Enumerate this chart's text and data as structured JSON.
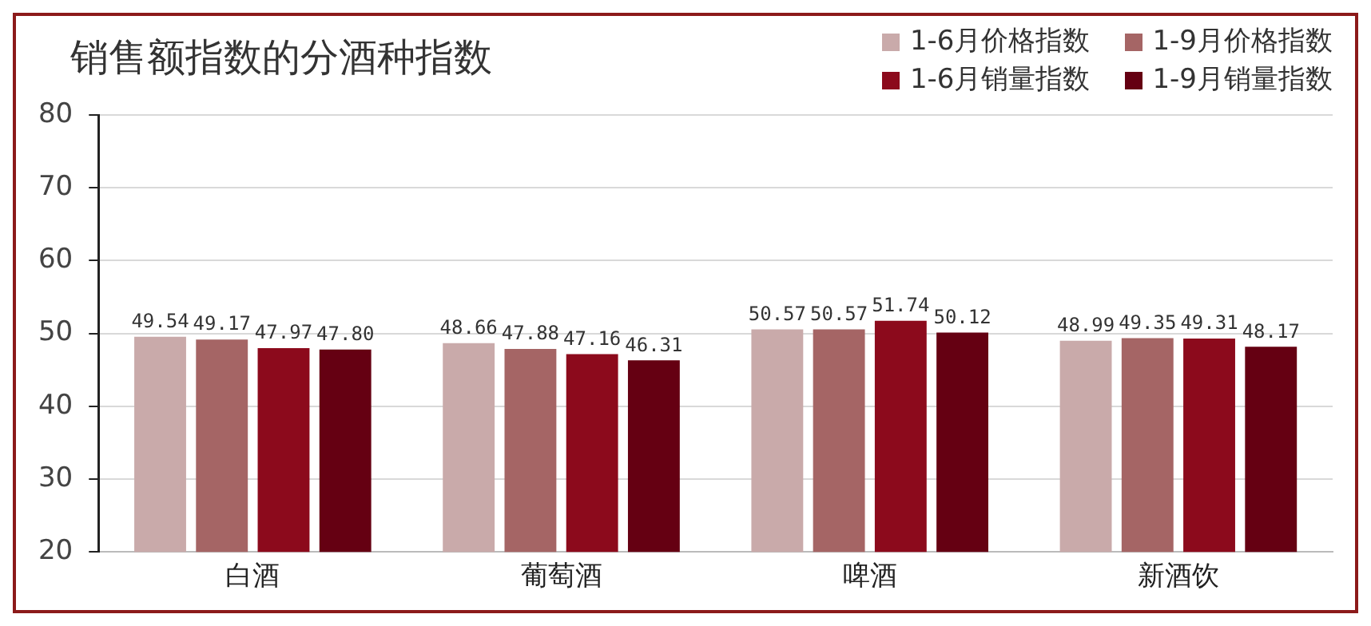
{
  "chart_data": {
    "type": "bar",
    "title": "销售额指数的分酒种指数",
    "categories": [
      "白酒",
      "葡萄酒",
      "啤酒",
      "新酒饮"
    ],
    "series": [
      {
        "name": "1-6月价格指数",
        "color": "#c9aaaa",
        "values": [
          49.54,
          48.66,
          50.57,
          48.99
        ],
        "value_labels": [
          "49.54",
          "48.66",
          "50.57",
          "48.99"
        ]
      },
      {
        "name": "1-9月价格指数",
        "color": "#a56565",
        "values": [
          49.17,
          47.88,
          50.57,
          49.35
        ],
        "value_labels": [
          "49.17",
          "47.88",
          "50.57",
          "49.35"
        ]
      },
      {
        "name": "1-6月销量指数",
        "color": "#8c0a1c",
        "values": [
          47.97,
          47.16,
          51.74,
          49.31
        ],
        "value_labels": [
          "47.97",
          "47.16",
          "51.74",
          "49.31"
        ]
      },
      {
        "name": "1-9月销量指数",
        "color": "#650012",
        "values": [
          47.8,
          46.31,
          50.12,
          48.17
        ],
        "value_labels": [
          "47.80",
          "46.31",
          "50.12",
          "48.17"
        ]
      }
    ],
    "ylim": [
      20,
      80
    ],
    "yticks": [
      20,
      30,
      40,
      50,
      60,
      70,
      80
    ],
    "grid": "y",
    "legend": "top right"
  }
}
